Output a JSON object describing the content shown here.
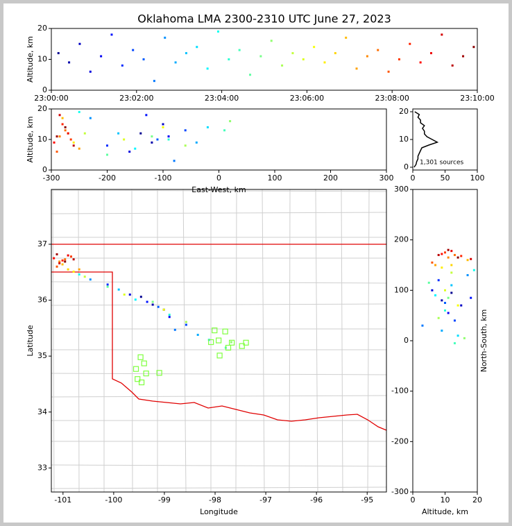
{
  "chart_data": {
    "type": "scatter",
    "title": "Oklahoma LMA 2300-2310 UTC June 27, 2023",
    "colormap": [
      "#00007f",
      "#0000ff",
      "#007fff",
      "#00ffff",
      "#7fff7f",
      "#ffff00",
      "#ff7f00",
      "#ff0000",
      "#7f0000"
    ],
    "sources": {
      "time_s": [
        10,
        25,
        40,
        55,
        70,
        85,
        100,
        115,
        130,
        145,
        160,
        175,
        190,
        205,
        220,
        235,
        250,
        265,
        280,
        295,
        310,
        325,
        340,
        355,
        370,
        385,
        400,
        415,
        430,
        445,
        460,
        475,
        490,
        505,
        520,
        535,
        550,
        565,
        580,
        595
      ],
      "altitude_km": [
        12,
        9,
        15,
        6,
        11,
        18,
        8,
        13,
        10,
        3,
        17,
        9,
        12,
        14,
        7,
        19,
        10,
        13,
        5,
        11,
        16,
        8,
        12,
        10,
        14,
        9,
        12,
        17,
        7,
        11,
        13,
        6,
        10,
        15,
        9,
        12,
        18,
        8,
        11,
        14
      ],
      "east_west_km": [
        -140,
        -120,
        -100,
        -160,
        -90,
        -130,
        -200,
        -60,
        -110,
        -80,
        -230,
        -40,
        -180,
        -20,
        -150,
        -250,
        -90,
        10,
        -200,
        -120,
        20,
        -60,
        -240,
        -170,
        -100,
        -260,
        -270,
        -280,
        -250,
        -285,
        -275,
        -290,
        -265,
        -280,
        -295,
        -270,
        -285,
        -260,
        -290,
        -275
      ],
      "north_south_km": [
        95,
        80,
        70,
        100,
        55,
        85,
        120,
        40,
        75,
        30,
        130,
        20,
        110,
        10,
        90,
        140,
        60,
        -5,
        115,
        85,
        5,
        45,
        135,
        100,
        70,
        145,
        150,
        160,
        150,
        165,
        170,
        155,
        175,
        168,
        172,
        178,
        162,
        170,
        180,
        165
      ],
      "longitude": [
        -99.46,
        -99.23,
        -99.01,
        -99.68,
        -98.9,
        -99.34,
        -100.12,
        -98.57,
        -99.12,
        -98.79,
        -100.46,
        -98.34,
        -99.9,
        -98.12,
        -99.57,
        -100.68,
        -98.9,
        -97.79,
        -100.12,
        -99.23,
        -97.68,
        -98.57,
        -100.57,
        -99.79,
        -99.01,
        -100.79,
        -100.9,
        -101.01,
        -100.68,
        -101.07,
        -100.96,
        -101.12,
        -100.84,
        -101.01,
        -101.18,
        -100.9,
        -101.07,
        -100.79,
        -101.12,
        -100.96
      ],
      "latitude": [
        36.06,
        35.92,
        35.83,
        36.1,
        35.7,
        35.97,
        36.28,
        35.56,
        35.88,
        35.47,
        36.37,
        35.38,
        36.19,
        35.29,
        36.01,
        36.46,
        35.74,
        35.15,
        36.24,
        35.97,
        35.25,
        35.61,
        36.42,
        36.1,
        35.83,
        36.51,
        36.55,
        36.64,
        36.55,
        36.69,
        36.73,
        36.6,
        36.78,
        36.71,
        36.75,
        36.8,
        36.66,
        36.73,
        36.82,
        36.69
      ]
    },
    "stations": {
      "color": "#7fff3f",
      "longitude": [
        -98.01,
        -97.8,
        -97.39,
        -98.08,
        -97.93,
        -97.67,
        -97.91,
        -97.47,
        -97.74,
        -99.47,
        -99.4,
        -99.56,
        -99.53,
        -99.45,
        -99.36,
        -99.1
      ],
      "latitude": [
        35.46,
        35.44,
        35.24,
        35.25,
        35.28,
        35.24,
        35.01,
        35.18,
        35.15,
        34.98,
        34.87,
        34.77,
        34.59,
        34.53,
        34.69,
        34.7
      ]
    },
    "panels": [
      {
        "xlim": [
          0,
          600
        ],
        "xticks": [
          {
            "value": 0,
            "label": "23:00:00"
          },
          {
            "value": 120,
            "label": "23:02:00"
          },
          {
            "value": 240,
            "label": "23:04:00"
          },
          {
            "value": 360,
            "label": "23:06:00"
          },
          {
            "value": 480,
            "label": "23:08:00"
          },
          {
            "value": 600,
            "label": "23:10:00"
          }
        ],
        "ylim": [
          0,
          20
        ],
        "yticks": [
          0,
          10,
          20
        ],
        "ylabel": "Altitude, km"
      },
      {
        "xlim": [
          -300,
          300
        ],
        "xticks": [
          -300,
          -200,
          -100,
          0,
          100,
          200,
          300
        ],
        "ylim": [
          0,
          20
        ],
        "yticks": [
          0,
          10,
          20
        ],
        "xlabel": "East-West, km",
        "ylabel": "Altitude, km"
      },
      {
        "xlim": [
          -101.23,
          -94.62
        ],
        "xticks": [
          -101,
          -100,
          -99,
          -98,
          -97,
          -96,
          -95
        ],
        "ylim": [
          32.57,
          37.98
        ],
        "yticks": [
          33,
          34,
          35,
          36,
          37
        ],
        "xlabel": "Longitude",
        "ylabel": "Latitude"
      },
      {
        "xlim": [
          0,
          20
        ],
        "xticks": [
          0,
          10,
          20
        ],
        "ylim": [
          -300,
          300
        ],
        "yticks": [
          -300,
          -200,
          -100,
          0,
          100,
          200,
          300
        ],
        "xlabel": "Altitude, km",
        "ylabel": "North-South, km"
      }
    ],
    "histogram": {
      "label": "1,301 sources",
      "color": "#000000",
      "xlim": [
        0,
        100
      ],
      "xticks": [
        0,
        50,
        100
      ],
      "ylim": [
        -1,
        21
      ],
      "yticks": [
        0,
        10,
        20
      ],
      "altitudes": [
        0,
        1,
        2,
        3,
        4,
        5,
        6,
        7,
        8,
        9,
        10,
        11,
        12,
        13,
        14,
        15,
        16,
        17,
        18,
        19,
        20
      ],
      "counts": [
        2,
        5,
        6,
        8,
        8,
        10,
        12,
        14,
        25,
        38,
        30,
        22,
        18,
        18,
        15,
        18,
        12,
        12,
        8,
        10,
        3
      ]
    }
  }
}
